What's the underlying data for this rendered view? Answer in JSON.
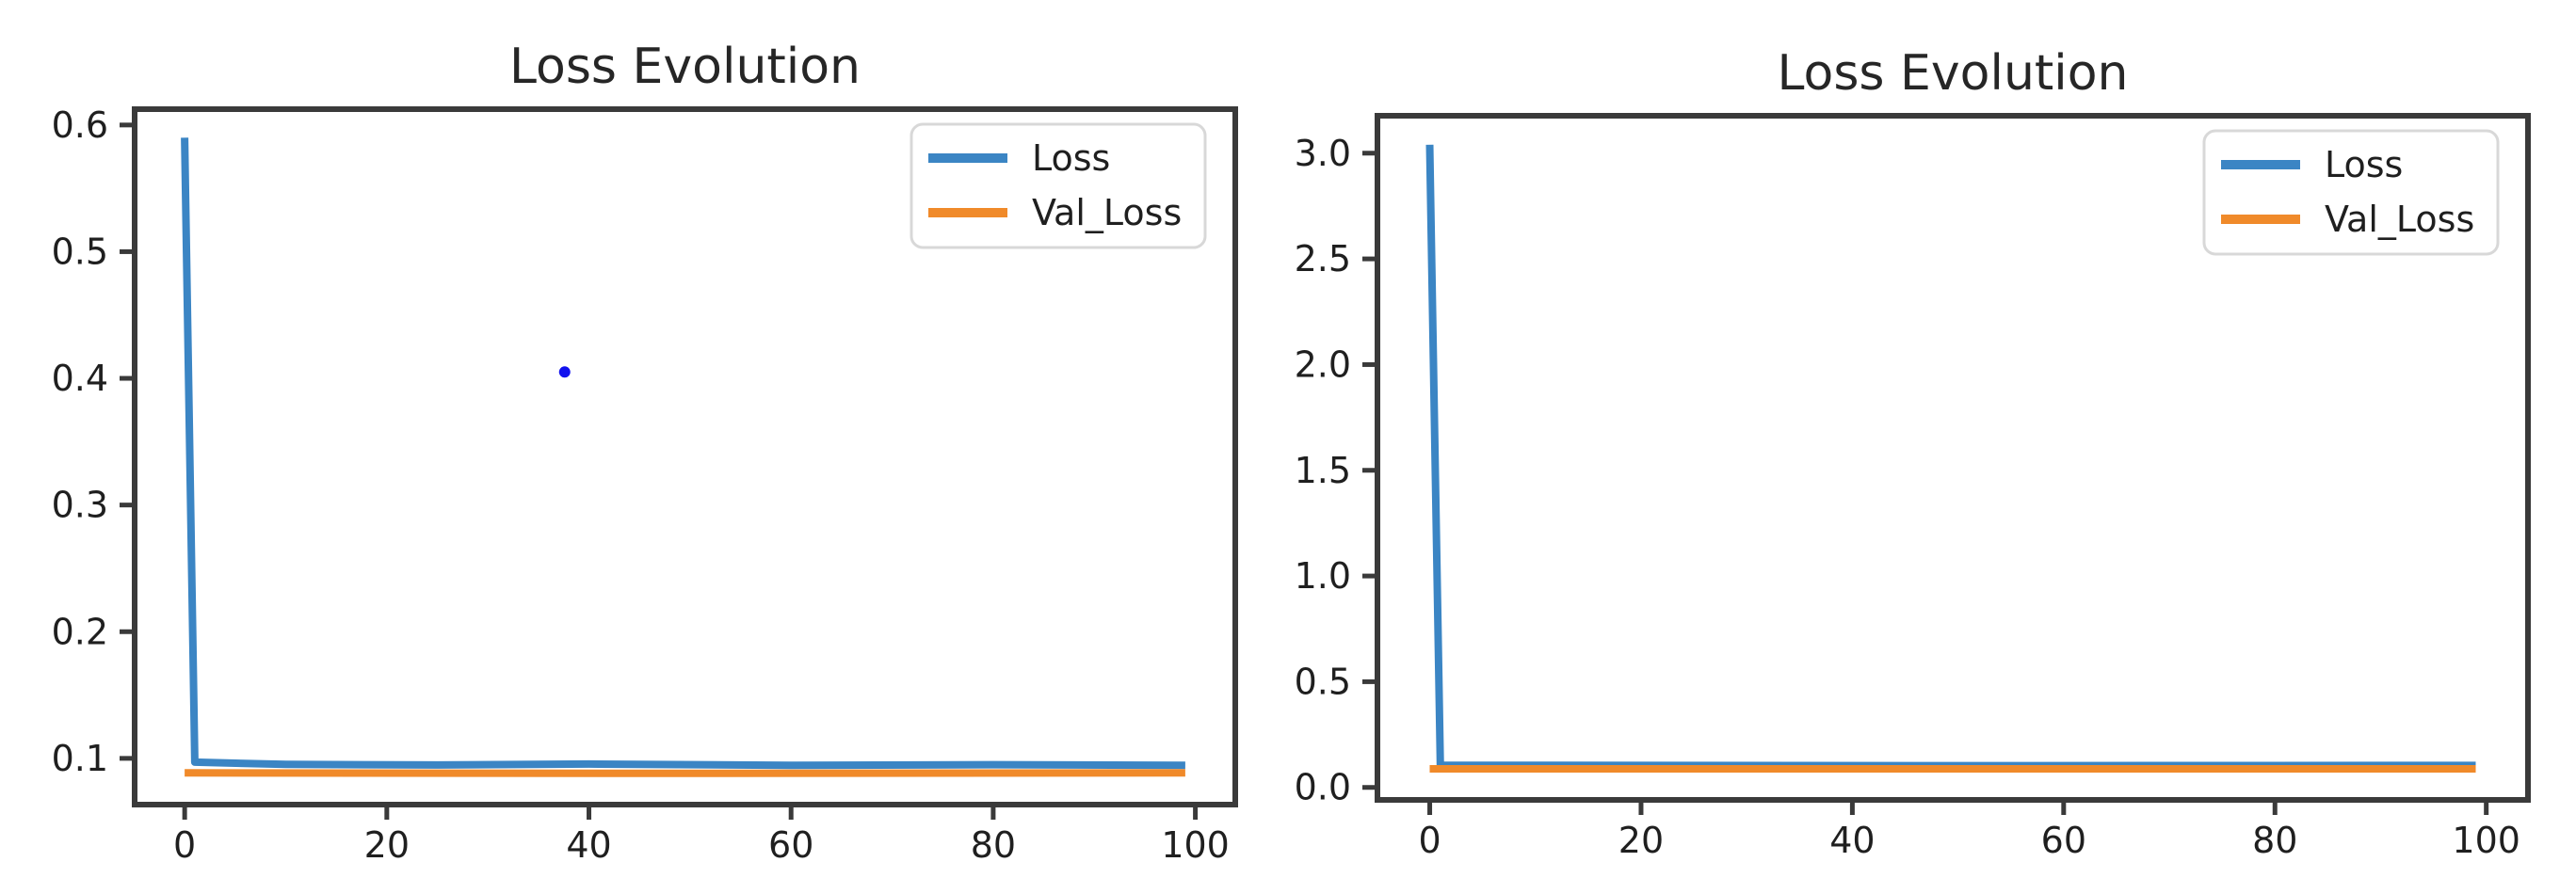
{
  "figure": {
    "background": "#ffffff",
    "spine_color": "#3a3a3a",
    "text_color": "#1f1f1f"
  },
  "chart_data": [
    {
      "id": "left",
      "type": "line",
      "title": "Loss Evolution",
      "xlabel": "",
      "ylabel": "",
      "grid": false,
      "xlim": [
        -4.95,
        103.95
      ],
      "ylim": [
        0.0635,
        0.6125
      ],
      "x_ticks": [
        0,
        20,
        40,
        60,
        80,
        100
      ],
      "x_tick_labels": [
        "0",
        "20",
        "40",
        "60",
        "80",
        "100"
      ],
      "y_ticks": [
        0.1,
        0.2,
        0.3,
        0.4,
        0.5,
        0.6
      ],
      "y_tick_labels": [
        "0.1",
        "0.2",
        "0.3",
        "0.4",
        "0.5",
        "0.6"
      ],
      "legend": {
        "position": "upper-right",
        "entries": [
          "Loss",
          "Val_Loss"
        ]
      },
      "series": [
        {
          "name": "Loss",
          "color": "#3b85c4",
          "points": [
            [
              0,
              0.59
            ],
            [
              1,
              0.097
            ],
            [
              10,
              0.0952
            ],
            [
              25,
              0.0948
            ],
            [
              40,
              0.0955
            ],
            [
              60,
              0.0945
            ],
            [
              80,
              0.095
            ],
            [
              99,
              0.0945
            ]
          ]
        },
        {
          "name": "Val_Loss",
          "color": "#f08a2a",
          "points": [
            [
              0,
              0.0885
            ],
            [
              50,
              0.0882
            ],
            [
              99,
              0.0885
            ]
          ]
        }
      ],
      "annotations": [
        {
          "type": "dot",
          "name": "stray-blue-dot",
          "x": 37.6,
          "y": 0.405,
          "color": "#1111ee"
        }
      ]
    },
    {
      "id": "right",
      "type": "line",
      "title": "Loss Evolution",
      "xlabel": "",
      "ylabel": "",
      "grid": false,
      "xlim": [
        -4.95,
        103.95
      ],
      "ylim": [
        -0.059,
        3.177
      ],
      "x_ticks": [
        0,
        20,
        40,
        60,
        80,
        100
      ],
      "x_tick_labels": [
        "0",
        "20",
        "40",
        "60",
        "80",
        "100"
      ],
      "y_ticks": [
        0.0,
        0.5,
        1.0,
        1.5,
        2.0,
        2.5,
        3.0
      ],
      "y_tick_labels": [
        "0.0",
        "0.5",
        "1.0",
        "1.5",
        "2.0",
        "2.5",
        "3.0"
      ],
      "legend": {
        "position": "upper-right",
        "entries": [
          "Loss",
          "Val_Loss"
        ]
      },
      "series": [
        {
          "name": "Loss",
          "color": "#3b85c4",
          "points": [
            [
              0,
              3.04
            ],
            [
              1,
              0.105
            ],
            [
              50,
              0.103
            ],
            [
              99,
              0.104
            ]
          ]
        },
        {
          "name": "Val_Loss",
          "color": "#f08a2a",
          "points": [
            [
              0,
              0.088
            ],
            [
              99,
              0.088
            ]
          ]
        }
      ],
      "annotations": []
    }
  ]
}
